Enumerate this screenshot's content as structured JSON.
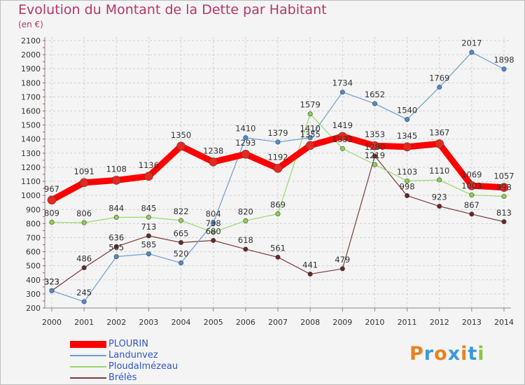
{
  "title": "Evolution du Montant de la Dette par Habitant",
  "unit_label": "(en €)",
  "logo": {
    "text": "Proxiti",
    "letter_colors": [
      "#e8821e",
      "#3a9ad9",
      "#e8821e",
      "#3a9ad9",
      "#e8821e",
      "#3a9ad9",
      "#8cc63f"
    ]
  },
  "chart_data": {
    "type": "line",
    "title": "Evolution du Montant de la Dette par Habitant",
    "ylabel": "(en €)",
    "xlabel": "",
    "x": [
      "2000",
      "2001",
      "2002",
      "2003",
      "2004",
      "2005",
      "2006",
      "2007",
      "2008",
      "2009",
      "2010",
      "2011",
      "2012",
      "2013",
      "2014"
    ],
    "ylim": [
      200,
      2100
    ],
    "yticks": [
      200,
      300,
      400,
      500,
      600,
      700,
      800,
      900,
      1000,
      1100,
      1200,
      1300,
      1400,
      1500,
      1600,
      1700,
      1800,
      1900,
      2000,
      2100
    ],
    "grid": true,
    "legend_position": "bottom-left",
    "series": [
      {
        "name": "PLOURIN",
        "color": "#ff0000",
        "marker_color": "#e8281f",
        "values": [
          967,
          1091,
          1108,
          1136,
          1350,
          1238,
          1293,
          1192,
          1355,
          1419,
          1353,
          1345,
          1367,
          1069,
          1057
        ]
      },
      {
        "name": "Landunvez",
        "color": "#6a9ed1",
        "marker_color": "#4b8bd0",
        "values": [
          323,
          245,
          565,
          585,
          520,
          804,
          1410,
          1379,
          1410,
          1734,
          1652,
          1540,
          1769,
          2017,
          1898
        ]
      },
      {
        "name": "Ploudalmézeau",
        "color": "#97d86a",
        "marker_color": "#8cd14f",
        "values": [
          809,
          806,
          844,
          845,
          822,
          738,
          820,
          869,
          1579,
          1333,
          1219,
          1103,
          1110,
          1003,
          993
        ]
      },
      {
        "name": "Brélès",
        "color": "#7b3b3b",
        "marker_color": "#6b2626",
        "values": [
          323,
          486,
          636,
          713,
          665,
          680,
          618,
          561,
          441,
          479,
          1280,
          998,
          923,
          867,
          813
        ]
      }
    ]
  }
}
